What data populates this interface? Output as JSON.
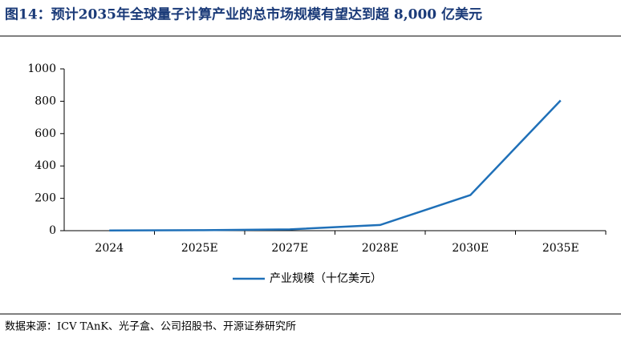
{
  "chart_data": {
    "type": "line",
    "title": "图14：预计2035年全球量子计算产业的总市场规模有望达到超 8,000 亿美元",
    "categories": [
      "2024",
      "2025E",
      "2027E",
      "2028E",
      "2030E",
      "2035E"
    ],
    "series": [
      {
        "name": "产业规模（十亿美元）",
        "color": "#1f70b8",
        "values": [
          1.5,
          3,
          8,
          35,
          220,
          805
        ]
      }
    ],
    "ylim": [
      0,
      1000
    ],
    "yticks": [
      0,
      200,
      400,
      600,
      800,
      1000
    ],
    "grid": false,
    "legend": "bottom",
    "source": "数据来源：ICV TAnK、光子盒、公司招股书、开源证券研究所"
  }
}
